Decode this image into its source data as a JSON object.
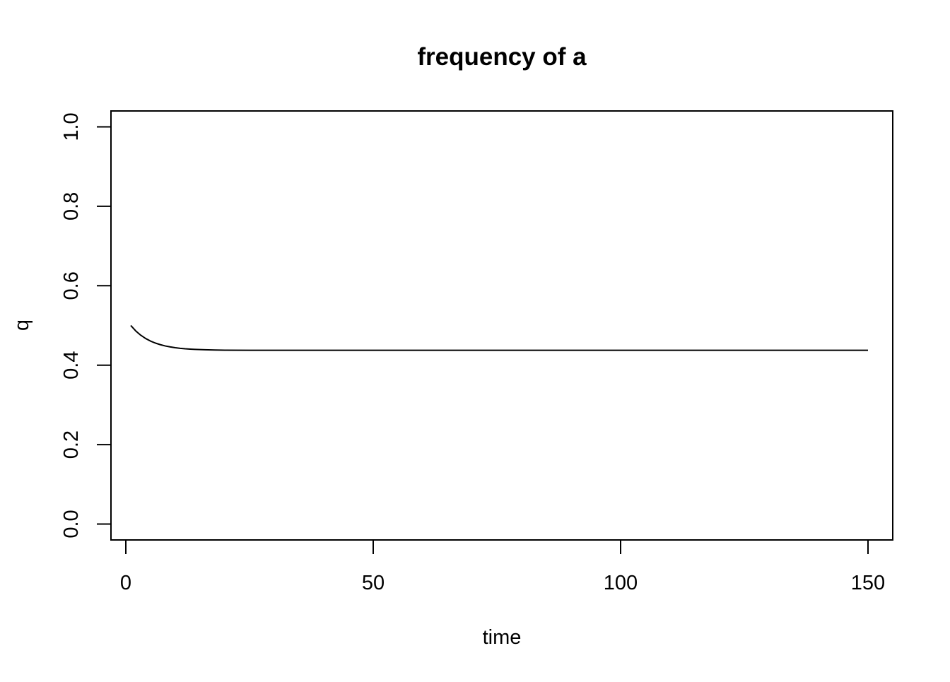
{
  "chart_data": {
    "type": "line",
    "title": "frequency of a",
    "xlabel": "time",
    "ylabel": "q",
    "xlim": [
      -3,
      155
    ],
    "ylim": [
      -0.04,
      1.04
    ],
    "xticks": [
      "0",
      "50",
      "100",
      "150"
    ],
    "xtick_values": [
      0,
      50,
      100,
      150
    ],
    "yticks": [
      "0.0",
      "0.2",
      "0.4",
      "0.6",
      "0.8",
      "1.0"
    ],
    "ytick_values": [
      0.0,
      0.2,
      0.4,
      0.6,
      0.8,
      1.0
    ],
    "grid": false,
    "legend": null,
    "colors": {
      "line": "#000000",
      "axes": "#000000",
      "background": "#ffffff"
    },
    "series": [
      {
        "x": [
          1,
          2,
          3,
          4,
          5,
          6,
          7,
          8,
          9,
          10,
          11,
          12,
          13,
          14,
          15,
          16,
          18,
          20,
          25,
          30,
          40,
          50,
          60,
          70,
          80,
          90,
          100,
          110,
          120,
          130,
          140,
          150
        ],
        "y": [
          0.5,
          0.4863,
          0.4756,
          0.4672,
          0.4606,
          0.4555,
          0.4515,
          0.4483,
          0.4459,
          0.444,
          0.4425,
          0.4413,
          0.4404,
          0.4397,
          0.4392,
          0.4388,
          0.4382,
          0.4378,
          0.4375,
          0.4374,
          0.4374,
          0.4374,
          0.4374,
          0.4374,
          0.4374,
          0.4374,
          0.4374,
          0.4374,
          0.4374,
          0.4374,
          0.4374,
          0.4374
        ]
      }
    ]
  }
}
